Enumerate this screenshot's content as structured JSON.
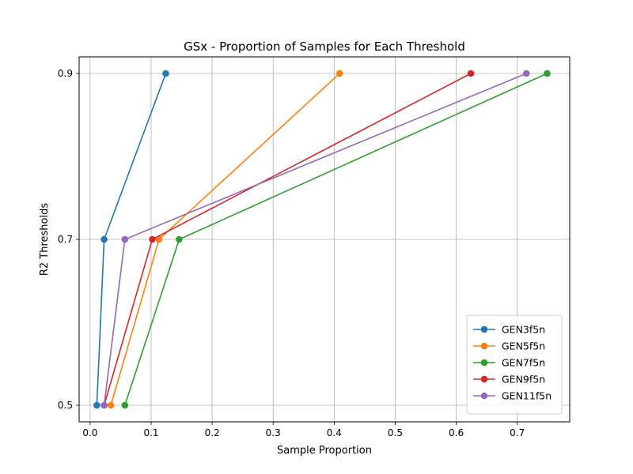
{
  "chart_data": {
    "type": "line",
    "title": "GSx - Proportion of Samples for Each Threshold",
    "xlabel": "Sample Proportion",
    "ylabel": "R2 Thresholds",
    "xlim": [
      -0.018,
      0.786
    ],
    "ylim": [
      0.48,
      0.92
    ],
    "xticks": [
      0.0,
      0.1,
      0.2,
      0.3,
      0.4,
      0.5,
      0.6,
      0.7
    ],
    "xtick_labels": [
      "0.0",
      "0.1",
      "0.2",
      "0.3",
      "0.4",
      "0.5",
      "0.6",
      "0.7"
    ],
    "yticks": [
      0.5,
      0.7,
      0.9
    ],
    "ytick_labels": [
      "0.5",
      "0.7",
      "0.9"
    ],
    "grid": true,
    "legend_position": "lower-right",
    "series": [
      {
        "name": "GEN3f5n",
        "color": "#1f77b4",
        "x": [
          0.011,
          0.023,
          0.124
        ],
        "y": [
          0.5,
          0.7,
          0.9
        ]
      },
      {
        "name": "GEN5f5n",
        "color": "#ff7f0e",
        "x": [
          0.034,
          0.113,
          0.409
        ],
        "y": [
          0.5,
          0.7,
          0.9
        ]
      },
      {
        "name": "GEN7f5n",
        "color": "#2ca02c",
        "x": [
          0.057,
          0.146,
          0.749
        ],
        "y": [
          0.5,
          0.7,
          0.9
        ]
      },
      {
        "name": "GEN9f5n",
        "color": "#d62728",
        "x": [
          0.023,
          0.102,
          0.624
        ],
        "y": [
          0.5,
          0.7,
          0.9
        ]
      },
      {
        "name": "GEN11f5n",
        "color": "#9467bd",
        "x": [
          0.023,
          0.057,
          0.715
        ],
        "y": [
          0.5,
          0.7,
          0.9
        ]
      }
    ]
  }
}
